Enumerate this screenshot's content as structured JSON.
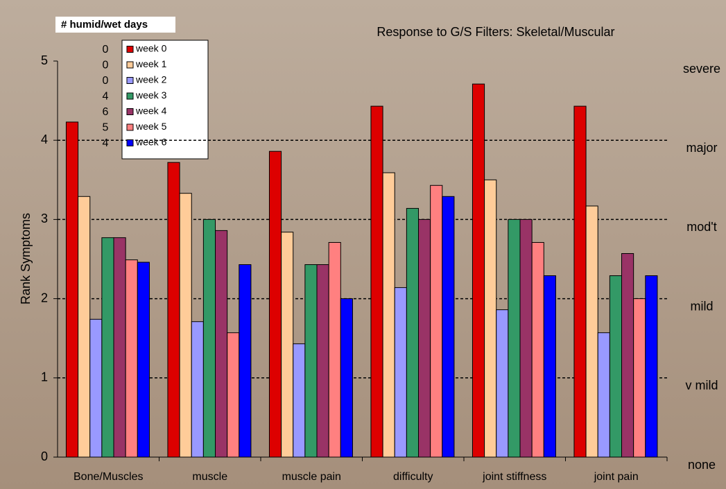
{
  "chart_data": {
    "type": "bar",
    "title": "Response to G/S Filters: Skeletal/Muscular",
    "y_label": "Rank Symptoms",
    "note_title": "# humid/wet days",
    "humid_days": [
      0,
      0,
      0,
      4,
      6,
      5,
      4
    ],
    "categories": [
      "Bone/Muscles",
      "muscle",
      "muscle pain",
      "difficulty",
      "joint stiffness",
      "joint pain"
    ],
    "series": [
      {
        "name": "week 0",
        "color": "#dd0000",
        "values": [
          4.23,
          3.72,
          3.86,
          4.43,
          4.71,
          4.43
        ]
      },
      {
        "name": "week 1",
        "color": "#ffcc99",
        "values": [
          3.29,
          3.33,
          2.84,
          3.59,
          3.5,
          3.17
        ]
      },
      {
        "name": "week 2",
        "color": "#9999ff",
        "values": [
          1.74,
          1.71,
          1.43,
          2.14,
          1.86,
          1.57
        ]
      },
      {
        "name": "week 3",
        "color": "#339966",
        "values": [
          2.77,
          3.0,
          2.43,
          3.14,
          3.0,
          2.29
        ]
      },
      {
        "name": "week 4",
        "color": "#993366",
        "values": [
          2.77,
          2.86,
          2.43,
          3.0,
          3.0,
          2.57
        ]
      },
      {
        "name": "week 5",
        "color": "#ff8080",
        "values": [
          2.49,
          1.57,
          2.71,
          3.43,
          2.71,
          2.0
        ]
      },
      {
        "name": "week 6",
        "color": "#0000ff",
        "values": [
          2.46,
          2.43,
          2.0,
          3.29,
          2.29,
          2.29
        ]
      }
    ],
    "ylim": [
      0,
      5
    ],
    "yticks": [
      0,
      1,
      2,
      3,
      4,
      5
    ],
    "y2lim": [
      0,
      5
    ],
    "y2ticks": [
      {
        "value": 0,
        "label": "none"
      },
      {
        "value": 1,
        "label": "v mild"
      },
      {
        "value": 2,
        "label": "mild"
      },
      {
        "value": 3,
        "label": "mod't"
      },
      {
        "value": 4,
        "label": "major"
      },
      {
        "value": 5,
        "label": "severe"
      }
    ],
    "grid": true
  }
}
